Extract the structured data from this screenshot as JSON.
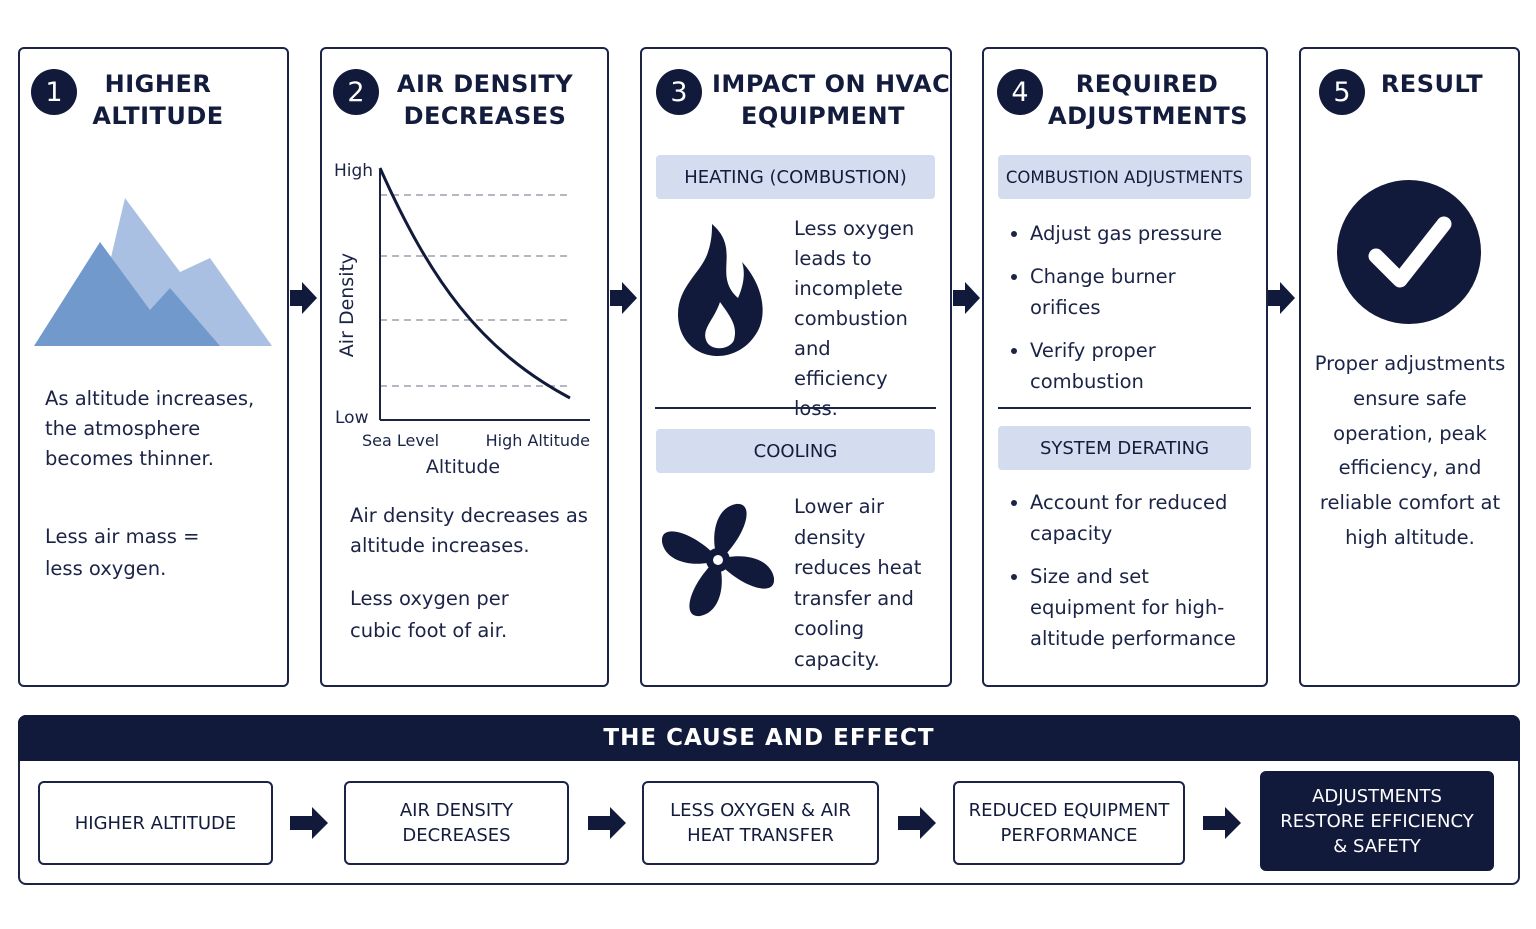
{
  "steps": [
    {
      "number": "1",
      "title_lines": [
        "HIGHER",
        "ALTITUDE"
      ],
      "paragraphs": [
        "As altitude increases, the atmosphere becomes thinner.",
        "Less air mass = less oxygen."
      ]
    },
    {
      "number": "2",
      "title_lines": [
        "AIR DENSITY",
        "DECREASES"
      ],
      "graph": {
        "y_high": "High",
        "y_low": "Low",
        "y_label": "Air Density",
        "x_start": "Sea Level",
        "x_end": "High Altitude",
        "x_label": "Altitude"
      },
      "paragraphs": [
        "Air density decreases as altitude increases.",
        "Less oxygen per cubic foot of air."
      ]
    },
    {
      "number": "3",
      "title_lines": [
        "IMPACT ON HVAC",
        "EQUIPMENT"
      ],
      "sections": [
        {
          "heading": "HEATING (COMBUSTION)",
          "text": "Less oxygen leads to incomplete combustion and efficiency loss."
        },
        {
          "heading": "COOLING",
          "text": "Lower air density reduces heat transfer and cooling capacity."
        }
      ]
    },
    {
      "number": "4",
      "title_lines": [
        "REQUIRED",
        "ADJUSTMENTS"
      ],
      "sections": [
        {
          "heading": "COMBUSTION ADJUSTMENTS",
          "bullets": [
            "Adjust gas pressure",
            "Change burner orifices",
            "Verify proper combustion"
          ]
        },
        {
          "heading": "SYSTEM DERATING",
          "bullets": [
            "Account for reduced capacity",
            "Size and set equipment for high-altitude performance"
          ]
        }
      ]
    },
    {
      "number": "5",
      "title_lines": [
        "RESULT"
      ],
      "paragraphs": [
        "Proper adjustments ensure safe operation, peak efficiency, and reliable comfort at high altitude."
      ]
    }
  ],
  "cause_effect": {
    "title": "THE CAUSE AND EFFECT",
    "boxes": [
      {
        "lines": [
          "HIGHER ALTITUDE"
        ]
      },
      {
        "lines": [
          "AIR DENSITY",
          "DECREASES"
        ]
      },
      {
        "lines": [
          "LESS OXYGEN & AIR",
          "HEAT TRANSFER"
        ]
      },
      {
        "lines": [
          "REDUCED EQUIPMENT",
          "PERFORMANCE"
        ]
      },
      {
        "lines": [
          "ADJUSTMENTS",
          "RESTORE EFFICIENCY",
          "& SAFETY"
        ]
      }
    ]
  }
}
